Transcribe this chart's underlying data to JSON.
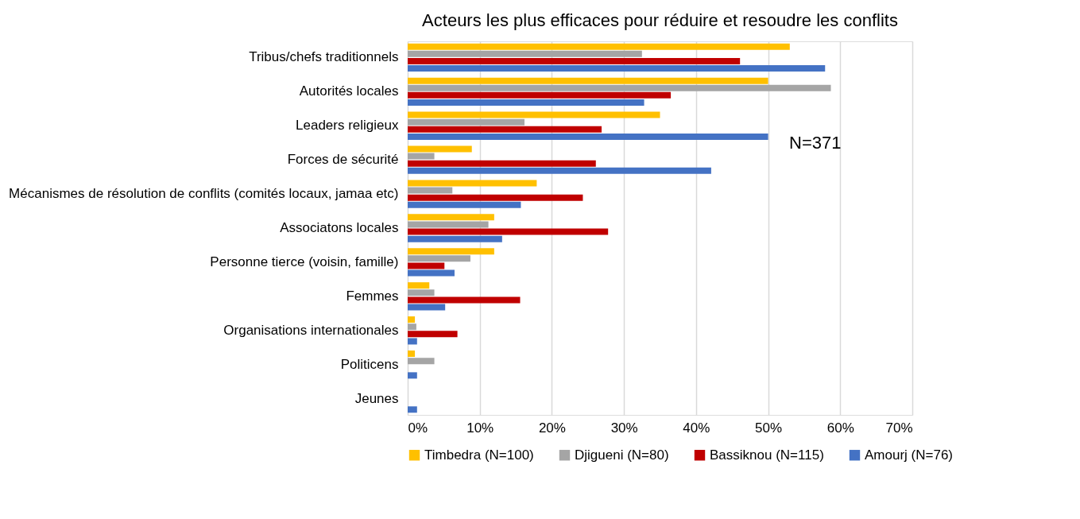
{
  "chart_data": {
    "type": "bar",
    "orientation": "horizontal",
    "title": "Acteurs les plus efficaces pour réduire et resoudre les conflits",
    "categories": [
      "Tribus/chefs traditionnels",
      "Autorités locales",
      "Leaders religieux",
      "Forces de sécurité",
      "Mécanismes de résolution de conflits (comités locaux, jamaa etc)",
      "Associatons locales",
      "Personne tierce (voisin, famille)",
      "Femmes",
      "Organisations internationales",
      "Politicens",
      "Jeunes"
    ],
    "series": [
      {
        "name": "Timbedra (N=100)",
        "color": "#ffc000",
        "values": [
          53.0,
          50.0,
          35.0,
          8.9,
          17.9,
          12.0,
          12.0,
          3.0,
          1.0,
          1.0,
          null
        ]
      },
      {
        "name": "Djigueni (N=80)",
        "color": "#a5a5a5",
        "values": [
          32.5,
          58.7,
          16.2,
          3.7,
          6.2,
          11.2,
          8.7,
          3.7,
          1.2,
          3.7,
          null
        ]
      },
      {
        "name": "Bassiknou (N=115)",
        "color": "#c00000",
        "values": [
          46.1,
          36.5,
          26.9,
          26.1,
          24.3,
          27.8,
          5.1,
          15.6,
          6.9,
          null,
          null
        ]
      },
      {
        "name": "Amourj (N=76)",
        "color": "#4472c4",
        "values": [
          57.9,
          32.8,
          50.0,
          42.1,
          15.7,
          13.1,
          6.5,
          5.2,
          1.3,
          1.3,
          1.3
        ]
      }
    ],
    "xlim": [
      0,
      70
    ],
    "xticks": [
      {
        "value": 0,
        "label": "0%"
      },
      {
        "value": 10,
        "label": "10%"
      },
      {
        "value": 20,
        "label": "20%"
      },
      {
        "value": 30,
        "label": "30%"
      },
      {
        "value": 40,
        "label": "40%"
      },
      {
        "value": 50,
        "label": "50%"
      },
      {
        "value": 60,
        "label": "60%"
      },
      {
        "value": 70,
        "label": "70%"
      }
    ],
    "grid": "x",
    "legend": "bottom",
    "annotations": [
      "N=371"
    ]
  }
}
